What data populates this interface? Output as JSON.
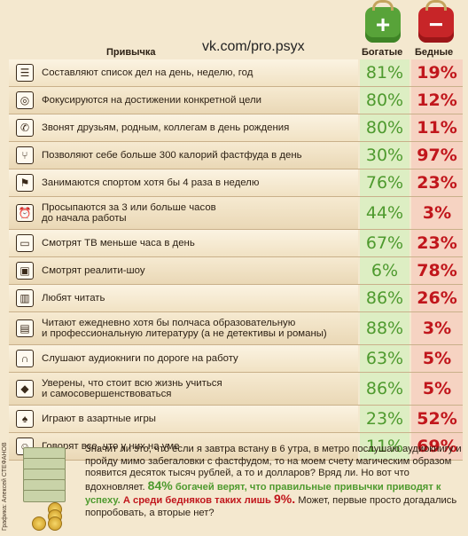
{
  "header": {
    "habit_label": "Привычка",
    "watermark": "vk.com/pro.psyx",
    "rich_label": "Богатые",
    "poor_label": "Бедные"
  },
  "colors": {
    "rich": "#4e9a2e",
    "poor": "#c1161c",
    "background": "#f4e8cf"
  },
  "rows": [
    {
      "icon": "list-icon",
      "glyph": "☰",
      "label": "Составляют список дел на день, неделю, год",
      "rich": "81%",
      "poor": "19%"
    },
    {
      "icon": "target-icon",
      "glyph": "◎",
      "label": "Фокусируются на достижении конкретной цели",
      "rich": "80%",
      "poor": "12%"
    },
    {
      "icon": "phone-icon",
      "glyph": "✆",
      "label": "Звонят друзьям, родным, коллегам в день рождения",
      "rich": "80%",
      "poor": "11%"
    },
    {
      "icon": "fork-icon",
      "glyph": "⑂",
      "label": "Позволяют себе больше 300 калорий фастфуда в день",
      "rich": "30%",
      "poor": "97%"
    },
    {
      "icon": "runner-icon",
      "glyph": "⚑",
      "label": "Занимаются спортом хотя бы 4 раза в неделю",
      "rich": "76%",
      "poor": "23%"
    },
    {
      "icon": "alarm-clock-icon",
      "glyph": "⏰",
      "label": "Просыпаются за 3 или больше часов\nдо начала работы",
      "rich": "44%",
      "poor": "3%"
    },
    {
      "icon": "tv-icon",
      "glyph": "▭",
      "label": "Смотрят ТВ меньше часа в день",
      "rich": "67%",
      "poor": "23%"
    },
    {
      "icon": "reality-tv-icon",
      "glyph": "▣",
      "label": "Смотрят реалити-шоу",
      "rich": "6%",
      "poor": "78%"
    },
    {
      "icon": "book-icon",
      "glyph": "▥",
      "label": "Любят читать",
      "rich": "86%",
      "poor": "26%"
    },
    {
      "icon": "books-icon",
      "glyph": "▤",
      "label": "Читают ежедневно хотя бы полчаса образовательную\nи профессиональную литературу (а не детективы и романы)",
      "rich": "88%",
      "poor": "3%"
    },
    {
      "icon": "headphones-icon",
      "glyph": "∩",
      "label": "Слушают аудиокниги по дороге на работу",
      "rich": "63%",
      "poor": "5%"
    },
    {
      "icon": "graduation-cap-icon",
      "glyph": "◆",
      "label": "Уверены, что стоит всю жизнь учиться\nи самосовершенствоваться",
      "rich": "86%",
      "poor": "5%"
    },
    {
      "icon": "spade-icon",
      "glyph": "♠",
      "label": "Играют в азартные игры",
      "rich": "23%",
      "poor": "52%"
    },
    {
      "icon": "speech-bubble-icon",
      "glyph": "☺",
      "label": "Говорят все, что у них на уме",
      "rich": "11%",
      "poor": "69%"
    }
  ],
  "footer": {
    "credit": "Графика: Алексей СТЕФАНОВ",
    "text_1": "Значит ли это, что если я завтра встану в 6 утра, в метро послушаю аудиокнигу и пройду мимо забегаловки с фастфудом, то на моем счету магическим образом появится десяток тысяч рублей, а то и долларов? Вряд ли. Но вот что вдохновляет.",
    "pct_rich": "84%",
    "text_rich": "богачей верят, что правильные привычки приводят к успеху.",
    "text_poor": "А среди бедняков таких лишь",
    "pct_poor": "9%.",
    "text_2": "Может, первые просто догадались попробовать, а вторые нет?"
  }
}
